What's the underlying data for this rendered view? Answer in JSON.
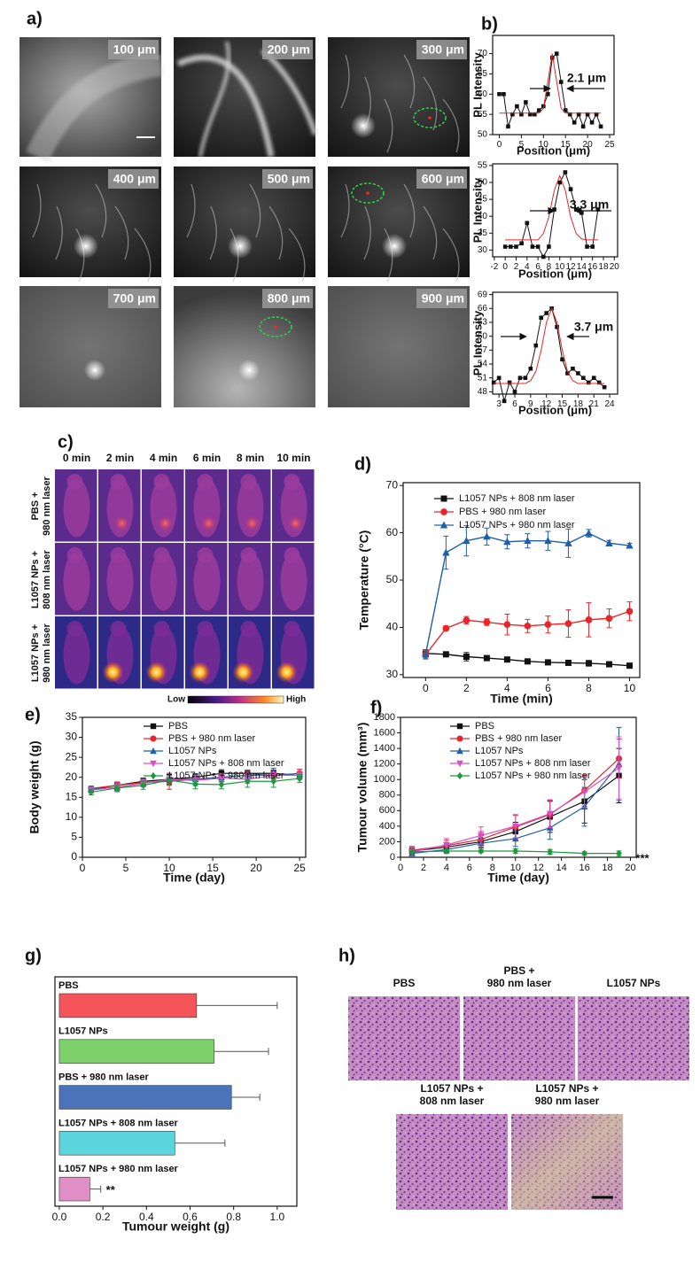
{
  "panel_a": {
    "label": "a)",
    "tiles": [
      "100 μm",
      "200 μm",
      "300 μm",
      "400 μm",
      "500 μm",
      "600 μm",
      "700 μm",
      "800 μm",
      "900 μm"
    ]
  },
  "panel_c": {
    "label": "c)",
    "columns": [
      "0 min",
      "2 min",
      "4 min",
      "6 min",
      "8 min",
      "10 min"
    ],
    "rows": [
      [
        "PBS +",
        "980 nm laser"
      ],
      [
        "L1057 NPs +",
        "808 nm laser"
      ],
      [
        "L1057 NPs +",
        "980 nm laser"
      ]
    ],
    "colorbar": {
      "low": "Low",
      "high": "High"
    }
  },
  "panel_h": {
    "label": "h)",
    "images": [
      [
        "PBS"
      ],
      [
        "PBS +",
        "980 nm laser"
      ],
      [
        "L1057 NPs"
      ],
      [
        "L1057 NPs +",
        "808 nm laser"
      ],
      [
        "L1057 NPs +",
        "980 nm laser"
      ]
    ]
  },
  "chart_data": [
    {
      "type": "line",
      "label": "b)",
      "xlabel": "Position (μm)",
      "ylabel": "PL Intensity",
      "annotation": "2.1 μm",
      "x": [
        0,
        1,
        2,
        3,
        4,
        5,
        6,
        7,
        8,
        9,
        10,
        11,
        12,
        13,
        14,
        15,
        16,
        17,
        18,
        19,
        20,
        21,
        22,
        23
      ],
      "series": [
        {
          "color": "#111111",
          "marker": "square",
          "values": [
            60,
            60,
            52,
            55,
            57,
            55,
            58,
            55,
            55,
            56,
            57,
            60,
            69,
            70,
            63,
            56,
            55,
            53,
            55,
            52,
            55,
            53,
            55,
            52
          ]
        },
        {
          "color": "#e8262a",
          "marker": "none",
          "values": [
            55.3,
            55.3,
            55.3,
            55.3,
            55.3,
            55.3,
            55.3,
            55.3,
            55.3,
            55.3,
            56.5,
            63.1,
            70,
            63.1,
            56.5,
            55.3,
            55.3,
            55.3,
            55.3,
            55.3,
            55.3,
            55.3,
            55.3,
            55.3
          ]
        }
      ],
      "xlim": [
        -1.5,
        26
      ],
      "ylim": [
        50,
        74.5
      ],
      "xticks": [
        0,
        5,
        10,
        15,
        20,
        25
      ],
      "yticks": [
        50,
        55,
        60,
        65,
        70
      ]
    },
    {
      "type": "line",
      "xlabel": "Position (μm)",
      "ylabel": "PL Intensity",
      "annotation": "3.3 μm",
      "x": [
        0,
        1,
        2,
        3,
        4,
        5,
        6,
        7,
        8,
        9,
        10,
        11,
        12,
        13,
        14,
        15,
        16,
        17
      ],
      "series": [
        {
          "color": "#111111",
          "marker": "square",
          "values": [
            31,
            31,
            31,
            32,
            38,
            31,
            31,
            28,
            31,
            42,
            50,
            53,
            48,
            42,
            41,
            31,
            31,
            42
          ]
        },
        {
          "color": "#e8262a",
          "marker": "none",
          "values": [
            33,
            33,
            33,
            33,
            33,
            33,
            33,
            34.9,
            39.8,
            47.7,
            52,
            47.7,
            39.8,
            34.9,
            33.3,
            33,
            33,
            33
          ]
        }
      ],
      "xlim": [
        -2.3,
        20.6
      ],
      "ylim": [
        28,
        55.5
      ],
      "xticks": [
        -2,
        0,
        2,
        4,
        6,
        8,
        10,
        12,
        14,
        16,
        18,
        20
      ],
      "yticks": [
        30,
        35,
        40,
        45,
        50,
        55
      ]
    },
    {
      "type": "line",
      "xlabel": "Position (μm)",
      "ylabel": "PL Intensity",
      "annotation": "3.7 μm",
      "x": [
        2,
        3,
        4,
        5,
        6,
        7,
        8,
        9,
        10,
        11,
        12,
        13,
        14,
        15,
        16,
        17,
        18,
        19,
        20,
        21,
        22,
        23
      ],
      "series": [
        {
          "color": "#111111",
          "marker": "square",
          "values": [
            50,
            51,
            46,
            50,
            48,
            51,
            51,
            53,
            58,
            64,
            65,
            66,
            62,
            55,
            52,
            53,
            52,
            51,
            50,
            51,
            50,
            49
          ]
        },
        {
          "color": "#e8262a",
          "marker": "none",
          "values": [
            49.8,
            49.8,
            49.8,
            49.8,
            49.8,
            49.8,
            49.8,
            50.4,
            52.4,
            57,
            63,
            66,
            63,
            57,
            52.4,
            50.4,
            49.8,
            49.8,
            49.8,
            49.8,
            49.8,
            49.8
          ]
        }
      ],
      "xlim": [
        1.8,
        25.5
      ],
      "ylim": [
        47.5,
        69.5
      ],
      "xticks": [
        3,
        6,
        9,
        12,
        15,
        18,
        21,
        24
      ],
      "yticks": [
        48,
        51,
        54,
        57,
        60,
        63,
        66,
        69
      ]
    },
    {
      "type": "line",
      "label": "d)",
      "xlabel": "Time (min)",
      "ylabel": "Temperature (°C)",
      "x": [
        0,
        1,
        2,
        3,
        4,
        5,
        6,
        7,
        8,
        9,
        10
      ],
      "series": [
        {
          "name": "L1057 NPs + 808 nm laser",
          "color": "#111111",
          "marker": "square",
          "values": [
            34.5,
            34.3,
            33.8,
            33.5,
            33.2,
            32.8,
            32.6,
            32.5,
            32.4,
            32.2,
            31.9
          ],
          "errors": [
            0.8,
            0.5,
            0.9,
            0.5,
            0.4,
            0.3,
            0.3,
            0.4,
            0.6,
            0.3,
            0.3
          ]
        },
        {
          "name": "PBS + 980 nm laser",
          "color": "#e8262a",
          "marker": "circle",
          "values": [
            34.2,
            39.8,
            41.5,
            41.1,
            40.6,
            40.3,
            40.6,
            40.8,
            41.6,
            41.9,
            43.4
          ],
          "errors": [
            0.8,
            0.5,
            0.8,
            0.7,
            2.2,
            1.4,
            1.8,
            2.9,
            3.6,
            2,
            2
          ]
        },
        {
          "name": "L1057 NPs + 980 nm laser",
          "color": "#1f5fa8",
          "marker": "triangle",
          "values": [
            34.3,
            55.8,
            58.3,
            59.2,
            58.1,
            58.3,
            58.3,
            57.8,
            59.9,
            57.8,
            57.3
          ],
          "errors": [
            1,
            3.5,
            3.2,
            1.8,
            1.5,
            1.5,
            2,
            3,
            0.8,
            0.6,
            0.5
          ]
        }
      ],
      "xlim": [
        -1.1,
        10.5
      ],
      "ylim": [
        29.4,
        70.6
      ],
      "xticks": [
        0,
        2,
        4,
        6,
        8,
        10
      ],
      "yticks": [
        30,
        40,
        50,
        60,
        70
      ]
    },
    {
      "type": "line",
      "label": "e)",
      "xlabel": "Time (day)",
      "ylabel": "Body weight (g)",
      "x": [
        1,
        4,
        7,
        10,
        13,
        16,
        19,
        22,
        25
      ],
      "series": [
        {
          "name": "PBS",
          "color": "#111111",
          "marker": "square",
          "values": [
            17,
            18,
            19,
            19.5,
            20,
            21,
            21,
            21,
            20.5
          ],
          "errors": [
            0.7,
            0.8,
            0.8,
            1.2,
            0.9,
            0.9,
            0.8,
            0.8,
            0.8
          ]
        },
        {
          "name": "PBS + 980 nm laser",
          "color": "#e8262a",
          "marker": "circle",
          "values": [
            17.2,
            18,
            18.7,
            19,
            19.5,
            20,
            20.5,
            20.5,
            21
          ],
          "errors": [
            0.6,
            0.8,
            0.9,
            2,
            1,
            1,
            1,
            1,
            1
          ]
        },
        {
          "name": "L1057 NPs",
          "color": "#1f5fa8",
          "marker": "triangle",
          "values": [
            17,
            17.5,
            18.5,
            19.5,
            19.5,
            20,
            20.5,
            21,
            20.5
          ],
          "errors": [
            0.6,
            0.8,
            0.9,
            1.5,
            1.3,
            1,
            1.2,
            1.3,
            1
          ]
        },
        {
          "name": "L1057 NPs + 808 nm laser",
          "color": "#d64fc3",
          "marker": "tri-down",
          "values": [
            16.8,
            17.5,
            18.5,
            19.5,
            19.2,
            19.8,
            19.5,
            20.5,
            20.5
          ],
          "errors": [
            0.7,
            0.9,
            0.9,
            1.5,
            1.3,
            1,
            1,
            1,
            1
          ]
        },
        {
          "name": "L1057 NPs + 980 nm laser",
          "color": "#1a9a3a",
          "marker": "diamond",
          "values": [
            16.3,
            17.3,
            18,
            19.3,
            18.3,
            18.2,
            19,
            19,
            19.7
          ],
          "errors": [
            0.7,
            0.9,
            1,
            1.2,
            1.2,
            1.1,
            1.5,
            1.5,
            1
          ]
        }
      ],
      "xlim": [
        0,
        25.7
      ],
      "ylim": [
        0,
        35
      ],
      "xticks": [
        0,
        5,
        10,
        15,
        20,
        25
      ],
      "yticks": [
        0,
        5,
        10,
        15,
        20,
        25,
        30,
        35
      ]
    },
    {
      "type": "line",
      "label": "f)",
      "xlabel": "Time (day)",
      "ylabel": "Tumour volume (mm³)",
      "annotation": "***",
      "x": [
        1,
        4,
        7,
        10,
        13,
        16,
        19
      ],
      "series": [
        {
          "name": "PBS",
          "color": "#111111",
          "marker": "square",
          "values": [
            80,
            130,
            200,
            330,
            520,
            720,
            1050
          ],
          "errors": [
            40,
            60,
            80,
            120,
            200,
            280,
            350
          ]
        },
        {
          "name": "PBS + 980 nm laser",
          "color": "#e8262a",
          "marker": "circle",
          "values": [
            90,
            150,
            230,
            390,
            550,
            860,
            1270
          ],
          "errors": [
            50,
            70,
            100,
            150,
            180,
            200,
            250
          ]
        },
        {
          "name": "L1057 NPs",
          "color": "#1f5fa8",
          "marker": "triangle",
          "values": [
            50,
            100,
            180,
            240,
            380,
            650,
            1200
          ],
          "errors": [
            30,
            50,
            60,
            100,
            150,
            250,
            470
          ]
        },
        {
          "name": "L1057 NPs + 808 nm laser",
          "color": "#d64fc3",
          "marker": "tri-down",
          "values": [
            70,
            160,
            280,
            400,
            560,
            840,
            1150
          ],
          "errors": [
            60,
            80,
            110,
            150,
            180,
            200,
            400
          ]
        },
        {
          "name": "L1057 NPs + 980 nm laser",
          "color": "#1a9a3a",
          "marker": "diamond",
          "values": [
            70,
            80,
            80,
            80,
            70,
            50,
            50
          ],
          "errors": [
            20,
            20,
            20,
            30,
            30,
            20,
            30
          ]
        }
      ],
      "xlim": [
        0,
        20.5
      ],
      "ylim": [
        0,
        1800
      ],
      "xticks": [
        0,
        2,
        4,
        6,
        8,
        10,
        12,
        14,
        16,
        18,
        20
      ],
      "yticks": [
        0,
        200,
        400,
        600,
        800,
        1000,
        1200,
        1400,
        1600,
        1800
      ]
    },
    {
      "type": "bar",
      "orientation": "horizontal",
      "label": "g)",
      "xlabel": "Tumour weight (g)",
      "annotation": "**",
      "categories": [
        "PBS",
        "L1057 NPs",
        "PBS + 980 nm laser",
        "L1057 NPs + 808 nm laser",
        "L1057 NPs + 980 nm laser"
      ],
      "values": [
        0.63,
        0.71,
        0.79,
        0.53,
        0.14
      ],
      "errors": [
        0.37,
        0.25,
        0.13,
        0.23,
        0.05
      ],
      "colors": [
        "#f5545a",
        "#7cd16a",
        "#4a73b9",
        "#5bd5db",
        "#e08fc6"
      ],
      "xlim": [
        -0.02,
        1.09
      ],
      "xticks": [
        {
          "value": 0,
          "label": "0.0"
        },
        0.2,
        0.4,
        0.6,
        0.8,
        {
          "value": 1,
          "label": "1.0"
        }
      ]
    }
  ]
}
